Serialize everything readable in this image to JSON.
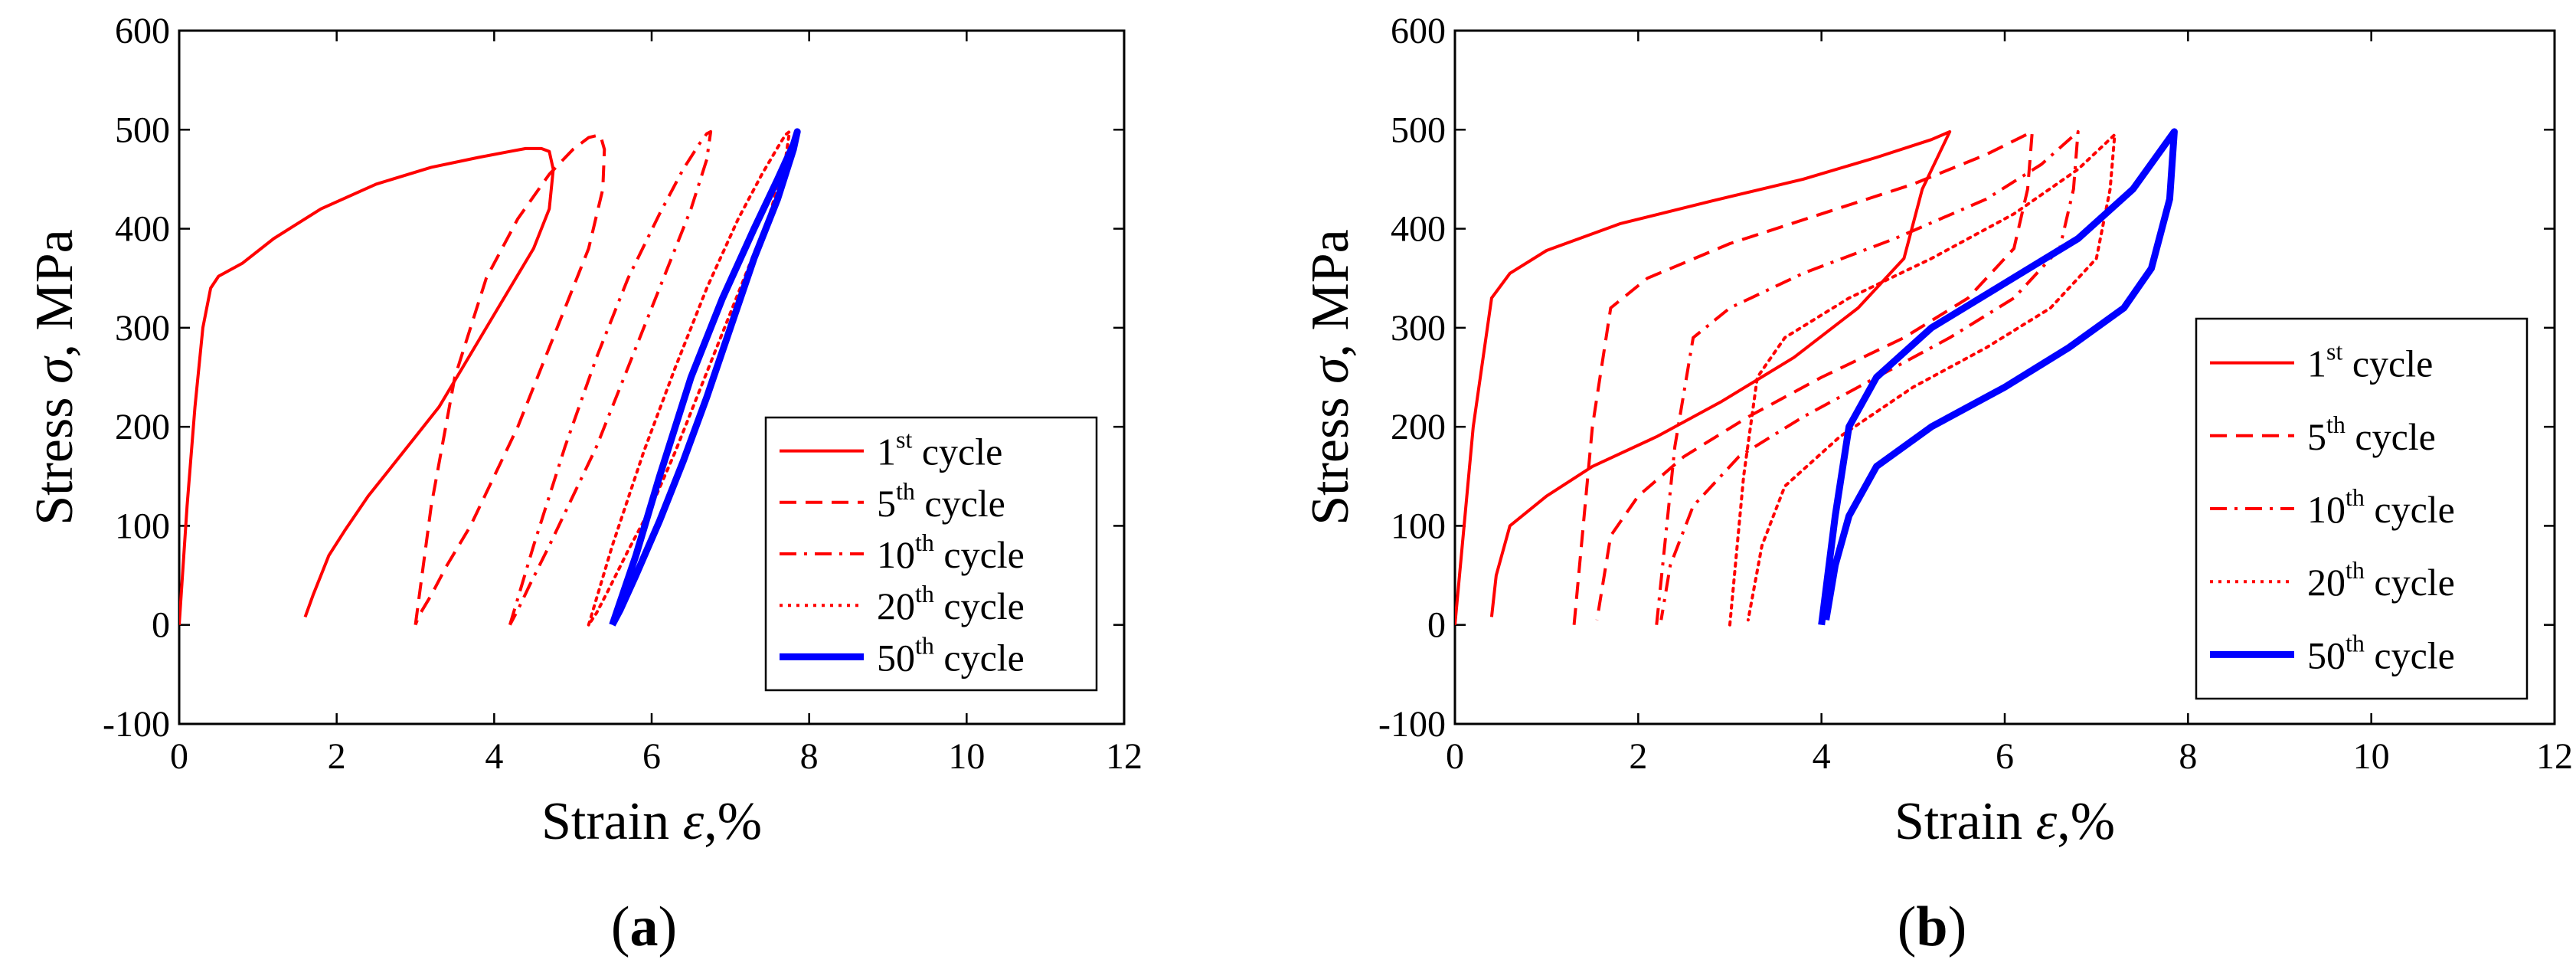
{
  "chart_data": [
    {
      "type": "line",
      "panel_label": "a",
      "xlabel_text": "Strain",
      "xlabel_symbol": "ε",
      "xlabel_unit": ",%",
      "ylabel_text": "Stress",
      "ylabel_symbol": "σ",
      "ylabel_unit": ", MPa",
      "xlim": [
        0,
        12
      ],
      "ylim": [
        -100,
        600
      ],
      "xticks": [
        0,
        2,
        4,
        6,
        8,
        10,
        12
      ],
      "yticks": [
        -100,
        0,
        100,
        200,
        300,
        400,
        500,
        600
      ],
      "legend_position": "lower-right",
      "series": [
        {
          "name": "1st cycle",
          "ordinal": "1",
          "suffix": "st",
          "word": "cycle",
          "style": "solid",
          "color": "#ff0000",
          "x": [
            0.0,
            0.1,
            0.2,
            0.3,
            0.4,
            0.5,
            0.8,
            1.2,
            1.8,
            2.5,
            3.2,
            3.8,
            4.2,
            4.4,
            4.6,
            4.7,
            4.75,
            4.7,
            4.5,
            4.2,
            3.9,
            3.6,
            3.3,
            3.0,
            2.7,
            2.4,
            2.1,
            1.9,
            1.8,
            1.7,
            1.6
          ],
          "y": [
            0,
            120,
            220,
            300,
            340,
            352,
            365,
            390,
            420,
            445,
            462,
            472,
            478,
            481,
            481,
            478,
            460,
            420,
            380,
            340,
            300,
            260,
            220,
            190,
            160,
            130,
            95,
            70,
            50,
            30,
            8
          ]
        },
        {
          "name": "5th cycle",
          "ordinal": "5",
          "suffix": "th",
          "word": "cycle",
          "style": "dashed",
          "color": "#ff0000",
          "x": [
            3.0,
            3.2,
            3.5,
            3.9,
            4.3,
            4.7,
            5.0,
            5.2,
            5.3,
            5.35,
            5.4,
            5.38,
            5.2,
            4.9,
            4.6,
            4.3,
            4.0,
            3.7,
            3.4,
            3.2,
            3.05,
            3.0
          ],
          "y": [
            0,
            120,
            250,
            350,
            410,
            455,
            480,
            492,
            494,
            494,
            480,
            440,
            380,
            320,
            260,
            200,
            150,
            100,
            60,
            30,
            10,
            0
          ],
          "y_return": true
        },
        {
          "name": "10th cycle",
          "ordinal": "10",
          "suffix": "th",
          "word": "cycle",
          "style": "dashdot",
          "color": "#ff0000",
          "x": [
            4.2,
            4.5,
            4.9,
            5.3,
            5.7,
            6.1,
            6.4,
            6.6,
            6.7,
            6.75,
            6.7,
            6.5,
            6.2,
            5.9,
            5.6,
            5.3,
            5.0,
            4.7,
            4.45,
            4.3,
            4.2
          ],
          "y": [
            0,
            80,
            180,
            270,
            350,
            415,
            460,
            485,
            496,
            498,
            470,
            420,
            360,
            300,
            240,
            180,
            130,
            80,
            40,
            15,
            0
          ]
        },
        {
          "name": "20th cycle",
          "ordinal": "20",
          "suffix": "th",
          "word": "cycle",
          "style": "dotted",
          "color": "#ff0000",
          "x": [
            5.2,
            5.5,
            5.9,
            6.3,
            6.7,
            7.1,
            7.4,
            7.6,
            7.7,
            7.75,
            7.7,
            7.5,
            7.2,
            6.9,
            6.6,
            6.3,
            6.0,
            5.7,
            5.45,
            5.3,
            5.2
          ],
          "y": [
            0,
            80,
            175,
            260,
            340,
            410,
            455,
            482,
            495,
            498,
            470,
            415,
            355,
            295,
            235,
            175,
            120,
            75,
            35,
            12,
            0
          ]
        },
        {
          "name": "50th cycle",
          "ordinal": "50",
          "suffix": "th",
          "word": "cycle",
          "style": "thick",
          "color": "#0000ff",
          "x": [
            5.5,
            5.8,
            6.1,
            6.5,
            6.9,
            7.3,
            7.6,
            7.8,
            7.85,
            7.8,
            7.6,
            7.3,
            7.0,
            6.7,
            6.4,
            6.1,
            5.8,
            5.6,
            5.5
          ],
          "y": [
            0,
            70,
            150,
            250,
            330,
            400,
            450,
            485,
            498,
            480,
            430,
            370,
            300,
            230,
            165,
            105,
            50,
            15,
            0
          ]
        }
      ]
    },
    {
      "type": "line",
      "panel_label": "b",
      "xlabel_text": "Strain",
      "xlabel_symbol": "ε",
      "xlabel_unit": ",%",
      "ylabel_text": "Stress",
      "ylabel_symbol": "σ",
      "ylabel_unit": ", MPa",
      "xlim": [
        0,
        12
      ],
      "ylim": [
        -100,
        600
      ],
      "xticks": [
        0,
        2,
        4,
        6,
        8,
        10,
        12
      ],
      "yticks": [
        -100,
        0,
        100,
        200,
        300,
        400,
        500,
        600
      ],
      "legend_position": "lower-right",
      "series": [
        {
          "name": "1st cycle",
          "ordinal": "1",
          "suffix": "st",
          "word": "cycle",
          "style": "solid",
          "color": "#ff0000",
          "x": [
            0.0,
            0.2,
            0.4,
            0.6,
            1.0,
            1.8,
            2.8,
            3.8,
            4.6,
            5.2,
            5.4,
            5.1,
            4.9,
            4.4,
            3.7,
            2.9,
            2.2,
            1.5,
            1.0,
            0.6,
            0.45,
            0.4
          ],
          "y": [
            0,
            200,
            330,
            355,
            378,
            405,
            428,
            450,
            472,
            490,
            498,
            440,
            370,
            320,
            270,
            225,
            190,
            160,
            130,
            100,
            50,
            8
          ]
        },
        {
          "name": "5th cycle",
          "ordinal": "5",
          "suffix": "th",
          "word": "cycle",
          "style": "dashed",
          "color": "#ff0000",
          "x": [
            1.3,
            1.5,
            1.7,
            2.1,
            3.0,
            4.0,
            5.0,
            5.8,
            6.3,
            6.25,
            6.1,
            5.6,
            4.9,
            4.0,
            3.2,
            2.5,
            2.0,
            1.7,
            1.55
          ],
          "y": [
            0,
            200,
            320,
            350,
            385,
            415,
            445,
            475,
            498,
            440,
            380,
            330,
            290,
            250,
            210,
            170,
            130,
            90,
            5
          ]
        },
        {
          "name": "10th cycle",
          "ordinal": "10",
          "suffix": "th",
          "word": "cycle",
          "style": "dashdot",
          "color": "#ff0000",
          "x": [
            2.2,
            2.4,
            2.6,
            3.0,
            3.8,
            4.8,
            5.8,
            6.4,
            6.8,
            6.75,
            6.6,
            6.1,
            5.4,
            4.6,
            3.8,
            3.1,
            2.6,
            2.35,
            2.25
          ],
          "y": [
            0,
            180,
            290,
            320,
            355,
            390,
            430,
            465,
            498,
            440,
            380,
            330,
            290,
            250,
            210,
            170,
            120,
            60,
            5
          ]
        },
        {
          "name": "20th cycle",
          "ordinal": "20",
          "suffix": "th",
          "word": "cycle",
          "style": "dotted",
          "color": "#ff0000",
          "x": [
            3.0,
            3.15,
            3.3,
            3.6,
            4.3,
            5.2,
            6.1,
            6.8,
            7.2,
            7.15,
            7.0,
            6.5,
            5.8,
            5.0,
            4.2,
            3.6,
            3.35,
            3.2
          ],
          "y": [
            0,
            150,
            250,
            290,
            330,
            370,
            415,
            460,
            495,
            440,
            370,
            320,
            280,
            240,
            190,
            140,
            80,
            5
          ]
        },
        {
          "name": "50th cycle",
          "ordinal": "50",
          "suffix": "th",
          "word": "cycle",
          "style": "thick",
          "color": "#0000ff",
          "x": [
            4.0,
            4.15,
            4.3,
            4.6,
            5.2,
            6.0,
            6.8,
            7.4,
            7.85,
            7.8,
            7.6,
            7.3,
            6.7,
            6.0,
            5.2,
            4.6,
            4.3,
            4.15,
            4.05
          ],
          "y": [
            0,
            110,
            200,
            250,
            300,
            345,
            390,
            440,
            498,
            430,
            360,
            320,
            280,
            240,
            200,
            160,
            110,
            60,
            5
          ]
        }
      ]
    }
  ]
}
